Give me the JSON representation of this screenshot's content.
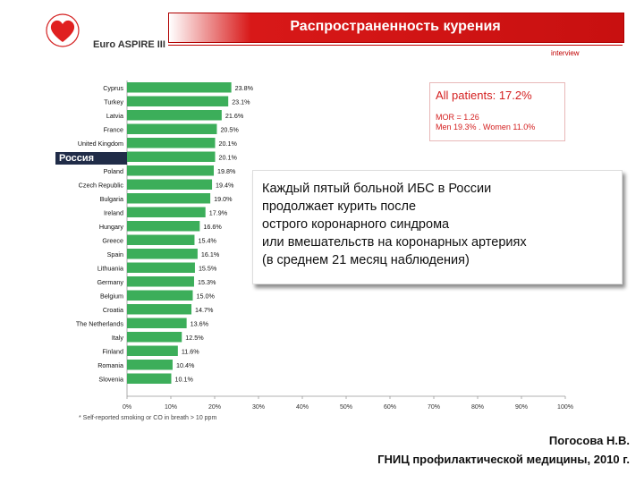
{
  "header": {
    "title": "Распространенность курения",
    "logo_text": "Euro ASPIRE III",
    "interview": "interview"
  },
  "russia_label": "Россия",
  "all_patients": {
    "title": "All patients: 17.2%",
    "mor": "MOR = 1.26",
    "men_women": "Men 19.3% . Women 11.0%"
  },
  "overlay_text": [
    "Каждый пятый больной ИБС в России",
    "продолжает курить после",
    "острого коронарного синдрома",
    "или вмешательств на коронарных артериях",
    "(в среднем 21 месяц наблюдения)"
  ],
  "footnote": "* Self-reported smoking or CO in breath > 10 ppm",
  "author": {
    "name": "Погосова Н.В.",
    "institution": "ГНИЦ профилактической медицины, 2010 г."
  },
  "colors": {
    "bar": "#3cae5a",
    "header": "#c81010",
    "accent": "#d42020"
  },
  "chart_data": {
    "type": "bar",
    "orientation": "horizontal",
    "categories": [
      "Cyprus",
      "Turkey",
      "Latvia",
      "France",
      "United Kingdom",
      "Russia",
      "Poland",
      "Czech Republic",
      "Bulgaria",
      "Ireland",
      "Hungary",
      "Greece",
      "Spain",
      "Lithuania",
      "Germany",
      "Belgium",
      "Croatia",
      "The Netherlands",
      "Italy",
      "Finland",
      "Romania",
      "Slovenia"
    ],
    "values": [
      23.8,
      23.1,
      21.6,
      20.5,
      20.1,
      20.1,
      19.8,
      19.4,
      19.0,
      17.9,
      16.6,
      15.4,
      16.1,
      15.5,
      15.3,
      15.0,
      14.7,
      13.6,
      12.5,
      11.6,
      10.4,
      10.1
    ],
    "value_labels": [
      "23.8%",
      "23.1%",
      "21.6%",
      "20.5%",
      "20.1%",
      "20.1%",
      "19.8%",
      "19.4%",
      "19.0%",
      "17.9%",
      "16.6%",
      "15.4%",
      "16.1%",
      "15.5%",
      "15.3%",
      "15.0%",
      "14.7%",
      "13.6%",
      "12.5%",
      "11.6%",
      "10.4%",
      "10.1%"
    ],
    "xticks": [
      "0%",
      "10%",
      "20%",
      "30%",
      "40%",
      "50%",
      "60%",
      "70%",
      "80%",
      "90%",
      "100%"
    ],
    "xlim": [
      0,
      100
    ],
    "grid": false
  }
}
